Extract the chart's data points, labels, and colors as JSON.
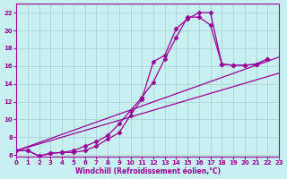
{
  "xlabel": "Windchill (Refroidissement éolien,°C)",
  "bg_color": "#c8f0f0",
  "line_color": "#990099",
  "grid_color": "#b0d8d8",
  "x_ticks": [
    0,
    1,
    2,
    3,
    4,
    5,
    6,
    7,
    8,
    9,
    10,
    11,
    12,
    13,
    14,
    15,
    16,
    17,
    18,
    19,
    20,
    21,
    22,
    23
  ],
  "y_ticks": [
    6,
    8,
    10,
    12,
    14,
    16,
    18,
    20,
    22
  ],
  "xlim": [
    0,
    23
  ],
  "ylim": [
    5.8,
    23.0
  ],
  "curve1_x": [
    0,
    1,
    2,
    3,
    4,
    5,
    6,
    7,
    8,
    9,
    10,
    11,
    12,
    13,
    14,
    15,
    16,
    17,
    18,
    19,
    20,
    21,
    22
  ],
  "curve1_y": [
    6.5,
    6.5,
    5.9,
    6.2,
    6.3,
    6.5,
    7.0,
    7.5,
    8.2,
    9.5,
    11.0,
    12.5,
    14.2,
    16.8,
    19.2,
    21.5,
    21.5,
    20.6,
    16.2,
    16.1,
    16.1,
    16.2,
    16.8
  ],
  "curve2_x": [
    0,
    1,
    2,
    3,
    4,
    5,
    6,
    7,
    8,
    9,
    10,
    11,
    12,
    13,
    14,
    15,
    16,
    17,
    18,
    19,
    20,
    21,
    22
  ],
  "curve2_y": [
    6.5,
    6.5,
    5.9,
    6.2,
    6.3,
    6.3,
    6.5,
    7.0,
    7.8,
    8.5,
    10.5,
    12.3,
    16.5,
    17.2,
    20.2,
    21.3,
    22.0,
    22.0,
    16.2,
    16.1,
    16.1,
    16.2,
    16.8
  ],
  "line1_x": [
    0,
    23
  ],
  "line1_y": [
    6.5,
    15.2
  ],
  "line2_x": [
    0,
    23
  ],
  "line2_y": [
    6.5,
    17.0
  ]
}
